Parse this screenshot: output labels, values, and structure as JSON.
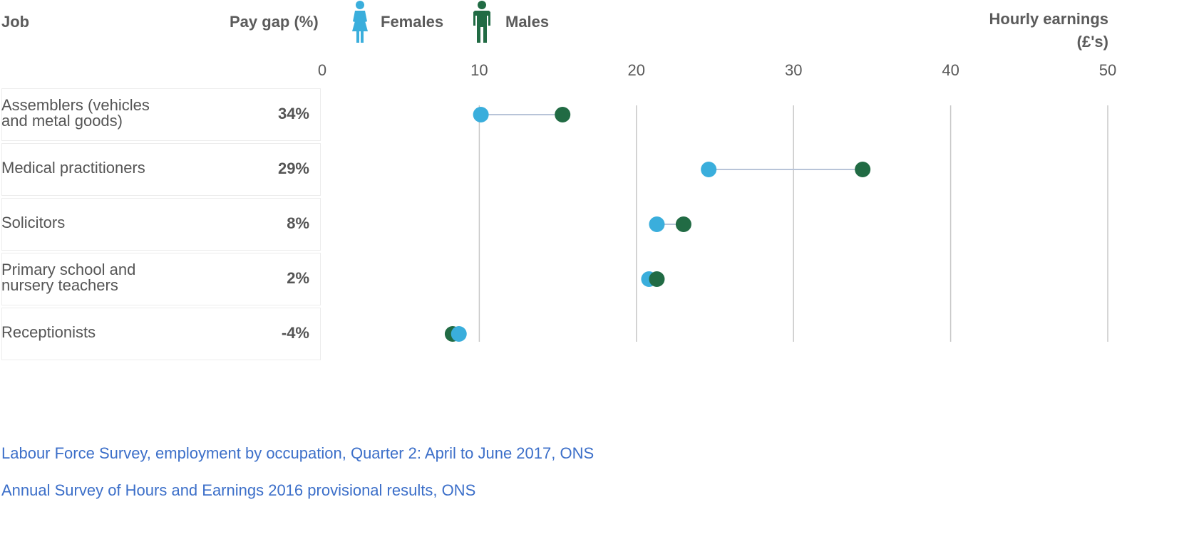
{
  "header": {
    "job_label": "Job",
    "gap_label": "Pay gap (%)",
    "legend": {
      "females": {
        "label": "Females",
        "color": "#3aaedc",
        "icon": "female-figure-icon"
      },
      "males": {
        "label": "Males",
        "color": "#216b44",
        "icon": "male-figure-icon"
      }
    },
    "axis_title_line1": "Hourly earnings",
    "axis_title_line2": "(£'s)"
  },
  "chart_data": {
    "type": "scatter",
    "subtype": "dumbbell",
    "xlabel": "Hourly earnings (£'s)",
    "xlim": [
      0,
      50
    ],
    "x_ticks": [
      0,
      10,
      20,
      30,
      40,
      50
    ],
    "grid": true,
    "legend_position": "top",
    "categories": [
      "Assemblers (vehicles and metal goods)",
      "Medical practitioners",
      "Solicitors",
      "Primary school and nursery teachers",
      "Receptionists"
    ],
    "series": [
      {
        "name": "Females",
        "color": "#3aaedc",
        "values": [
          10.1,
          24.6,
          21.3,
          20.8,
          8.7
        ]
      },
      {
        "name": "Males",
        "color": "#216b44",
        "values": [
          15.3,
          34.4,
          23.0,
          21.3,
          8.3
        ]
      }
    ],
    "rows": [
      {
        "job_lines": [
          "Assemblers (vehicles",
          "and metal goods)"
        ],
        "gap": "34%"
      },
      {
        "job_lines": [
          "Medical practitioners"
        ],
        "gap": "29%"
      },
      {
        "job_lines": [
          "Solicitors"
        ],
        "gap": "8%"
      },
      {
        "job_lines": [
          "Primary school and",
          "nursery teachers"
        ],
        "gap": "2%"
      },
      {
        "job_lines": [
          "Receptionists"
        ],
        "gap": "-4%"
      }
    ]
  },
  "sources": [
    "Labour Force Survey, employment by occupation, Quarter 2: April to June 2017, ONS",
    "Annual Survey of Hours and Earnings 2016 provisional results, ONS"
  ]
}
